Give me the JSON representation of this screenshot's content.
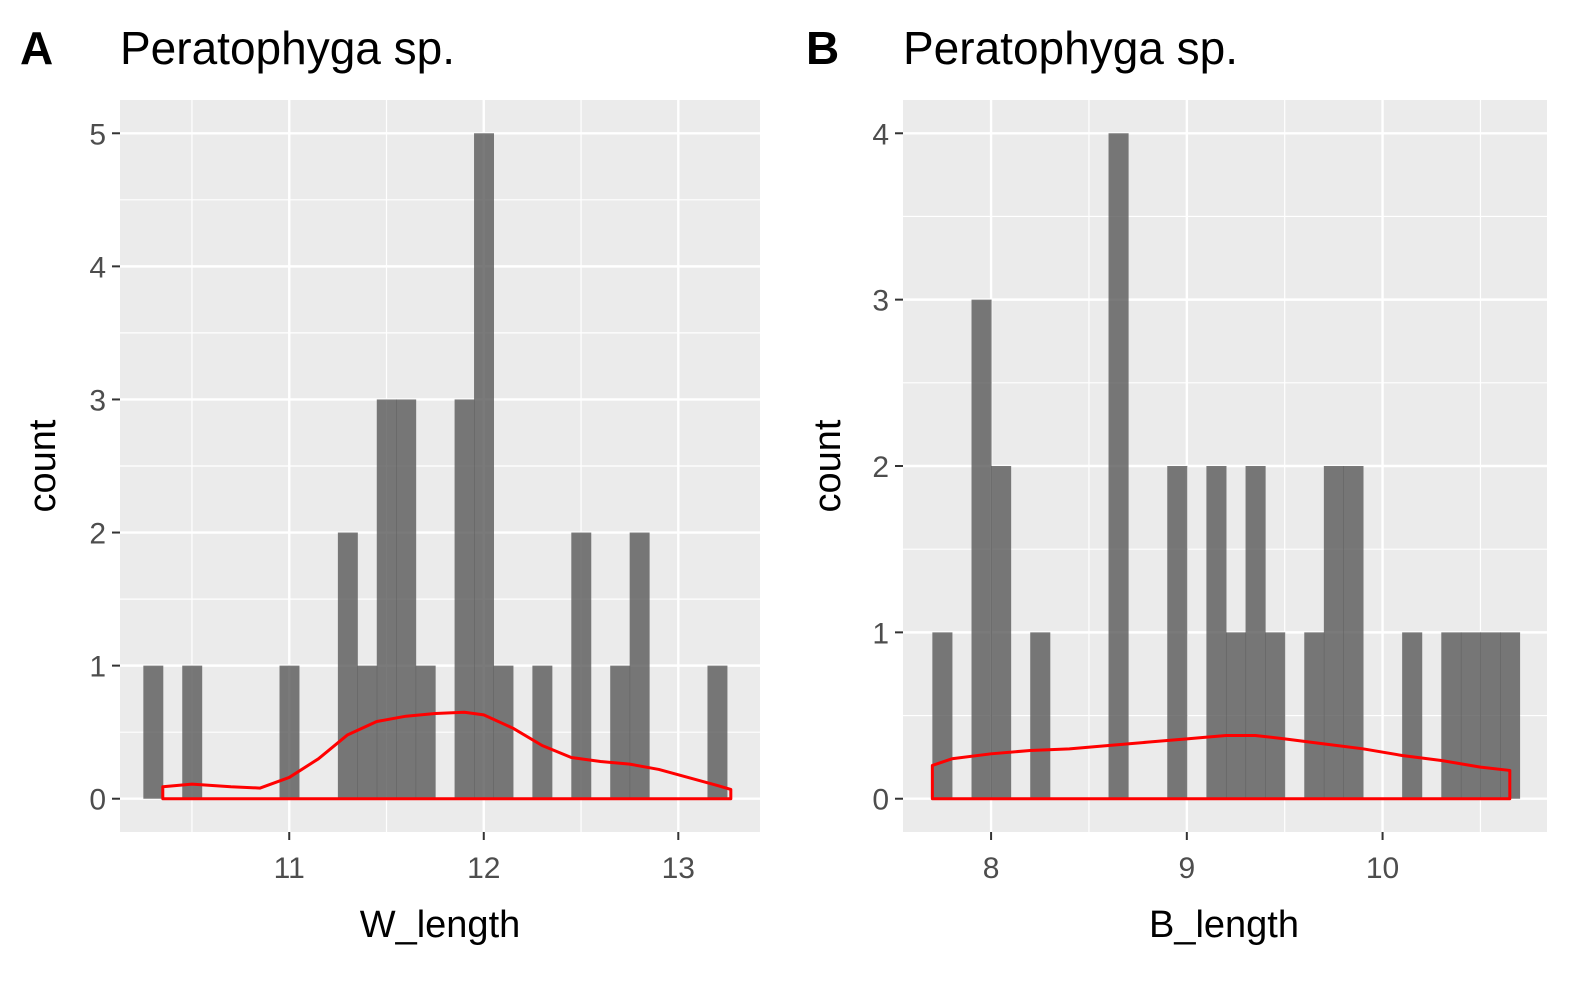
{
  "chart_data": [
    {
      "type": "bar",
      "panel_label": "A",
      "title": "Peratophyga sp.",
      "xlabel": "W_length",
      "ylabel": "count",
      "xlim": [
        10.13,
        13.42
      ],
      "ylim": [
        -0.25,
        5.25
      ],
      "x_ticks": [
        11,
        12,
        13
      ],
      "y_ticks": [
        0,
        1,
        2,
        3,
        4,
        5
      ],
      "bar_color": "#595959",
      "density_color": "#ff0000",
      "bin_width": 0.1,
      "bins": [
        {
          "x": 10.3,
          "count": 1
        },
        {
          "x": 10.5,
          "count": 1
        },
        {
          "x": 11.0,
          "count": 1
        },
        {
          "x": 11.3,
          "count": 2
        },
        {
          "x": 11.4,
          "count": 1
        },
        {
          "x": 11.5,
          "count": 3
        },
        {
          "x": 11.6,
          "count": 3
        },
        {
          "x": 11.7,
          "count": 1
        },
        {
          "x": 11.9,
          "count": 3
        },
        {
          "x": 12.0,
          "count": 5
        },
        {
          "x": 12.1,
          "count": 1
        },
        {
          "x": 12.3,
          "count": 1
        },
        {
          "x": 12.5,
          "count": 2
        },
        {
          "x": 12.7,
          "count": 1
        },
        {
          "x": 12.8,
          "count": 2
        },
        {
          "x": 13.2,
          "count": 1
        }
      ],
      "density": {
        "x": [
          10.35,
          10.5,
          10.7,
          10.85,
          11.0,
          11.15,
          11.3,
          11.45,
          11.6,
          11.75,
          11.9,
          12.0,
          12.15,
          12.3,
          12.45,
          12.6,
          12.75,
          12.9,
          13.05,
          13.2,
          13.27
        ],
        "y": [
          0.09,
          0.11,
          0.09,
          0.08,
          0.16,
          0.3,
          0.48,
          0.58,
          0.62,
          0.64,
          0.65,
          0.63,
          0.53,
          0.4,
          0.31,
          0.28,
          0.26,
          0.22,
          0.16,
          0.1,
          0.07
        ]
      }
    },
    {
      "type": "bar",
      "panel_label": "B",
      "title": "Peratophyga sp.",
      "xlabel": "B_length",
      "ylabel": "count",
      "xlim": [
        7.55,
        10.84
      ],
      "ylim": [
        -0.2,
        4.2
      ],
      "x_ticks": [
        8,
        9,
        10
      ],
      "y_ticks": [
        0,
        1,
        2,
        3,
        4
      ],
      "bar_color": "#595959",
      "density_color": "#ff0000",
      "bin_width": 0.1,
      "bins": [
        {
          "x": 7.75,
          "count": 1
        },
        {
          "x": 7.95,
          "count": 3
        },
        {
          "x": 8.05,
          "count": 2
        },
        {
          "x": 8.25,
          "count": 1
        },
        {
          "x": 8.65,
          "count": 4
        },
        {
          "x": 8.95,
          "count": 2
        },
        {
          "x": 9.15,
          "count": 2
        },
        {
          "x": 9.25,
          "count": 1
        },
        {
          "x": 9.35,
          "count": 2
        },
        {
          "x": 9.45,
          "count": 1
        },
        {
          "x": 9.65,
          "count": 1
        },
        {
          "x": 9.75,
          "count": 2
        },
        {
          "x": 9.85,
          "count": 2
        },
        {
          "x": 10.15,
          "count": 1
        },
        {
          "x": 10.35,
          "count": 1
        },
        {
          "x": 10.45,
          "count": 1
        },
        {
          "x": 10.55,
          "count": 1
        },
        {
          "x": 10.65,
          "count": 1
        }
      ],
      "density": {
        "x": [
          7.7,
          7.8,
          8.0,
          8.2,
          8.4,
          8.6,
          8.8,
          9.0,
          9.2,
          9.35,
          9.5,
          9.7,
          9.9,
          10.1,
          10.3,
          10.5,
          10.65
        ],
        "y": [
          0.2,
          0.24,
          0.27,
          0.29,
          0.3,
          0.32,
          0.34,
          0.36,
          0.38,
          0.38,
          0.36,
          0.33,
          0.3,
          0.26,
          0.23,
          0.19,
          0.17
        ]
      }
    }
  ]
}
